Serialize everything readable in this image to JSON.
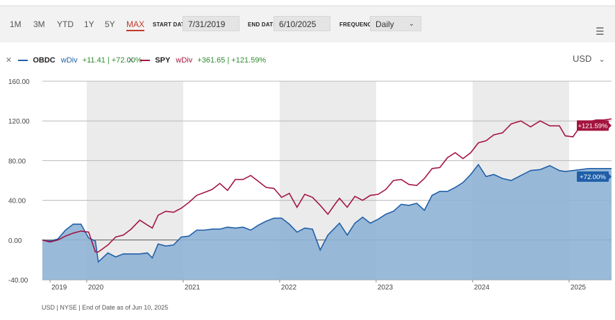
{
  "toolbar": {
    "ranges": [
      "1M",
      "3M",
      "YTD",
      "1Y",
      "5Y",
      "MAX"
    ],
    "active_range": "MAX",
    "start_label": "START DATE",
    "start_value": "7/31/2019",
    "end_label": "END DATE",
    "end_value": "6/10/2025",
    "freq_label": "FREQUENCY",
    "freq_value": "Daily",
    "menu_icon": "list-menu-icon"
  },
  "legend": [
    {
      "ticker": "OBDC",
      "wdiv": "wDiv",
      "change": "+11.41 | +72.00%",
      "color": "#1f5fa8"
    },
    {
      "ticker": "SPY",
      "wdiv": "wDiv",
      "change": "+361.65 | +121.59%",
      "color": "#a3143f"
    }
  ],
  "currency": "USD",
  "footer": "USD | NYSE | End of Date as of Jun 10, 2025",
  "chart_data": {
    "type": "line",
    "x_labels": [
      "2019",
      "2020",
      "2021",
      "2022",
      "2023",
      "2024",
      "2025"
    ],
    "y_ticks": [
      "160.00",
      "120.00",
      "80.00",
      "40.00",
      "0.00",
      "-40.00"
    ],
    "ylim": [
      -40,
      160
    ],
    "xlim": [
      2019.54,
      2025.44
    ],
    "unit": "%",
    "series": [
      {
        "name": "OBDC",
        "color": "#1f5fa8",
        "fill": "#8fb2d6",
        "end_label": "+72.00%",
        "x": [
          2019.54,
          2019.62,
          2019.7,
          2019.78,
          2019.86,
          2019.94,
          2020.02,
          2020.09,
          2020.12,
          2020.22,
          2020.3,
          2020.38,
          2020.46,
          2020.55,
          2020.63,
          2020.68,
          2020.74,
          2020.82,
          2020.9,
          2020.98,
          2021.06,
          2021.14,
          2021.22,
          2021.3,
          2021.38,
          2021.46,
          2021.54,
          2021.62,
          2021.7,
          2021.78,
          2021.86,
          2021.94,
          2022.02,
          2022.1,
          2022.18,
          2022.26,
          2022.34,
          2022.42,
          2022.5,
          2022.58,
          2022.62,
          2022.7,
          2022.78,
          2022.86,
          2022.94,
          2023.02,
          2023.1,
          2023.18,
          2023.26,
          2023.34,
          2023.42,
          2023.5,
          2023.58,
          2023.66,
          2023.74,
          2023.82,
          2023.9,
          2023.98,
          2024.06,
          2024.14,
          2024.22,
          2024.31,
          2024.4,
          2024.5,
          2024.6,
          2024.7,
          2024.8,
          2024.9,
          2024.96,
          2025.04,
          2025.12,
          2025.2,
          2025.28,
          2025.36,
          2025.44
        ],
        "y": [
          0,
          -1,
          1,
          10,
          16,
          16,
          2,
          -1,
          -22,
          -13,
          -17,
          -14,
          -14,
          -14,
          -13,
          -18,
          -4,
          -6,
          -5,
          3,
          4,
          10,
          10,
          11,
          11,
          13,
          12,
          13,
          10,
          15,
          19,
          22,
          22,
          16,
          8,
          12,
          11,
          -10,
          5,
          13,
          17,
          5,
          17,
          23,
          17,
          21,
          26,
          29,
          36,
          35,
          37,
          30,
          45,
          49,
          49,
          53,
          58,
          66,
          76,
          64,
          66,
          62,
          60,
          65,
          70,
          71,
          75,
          70,
          69,
          70,
          71,
          72,
          72,
          72,
          72
        ]
      },
      {
        "name": "SPY",
        "color": "#a3143f",
        "end_label": "+121.59%",
        "x": [
          2019.54,
          2019.62,
          2019.7,
          2019.78,
          2019.86,
          2019.94,
          2020.02,
          2020.09,
          2020.12,
          2020.22,
          2020.3,
          2020.38,
          2020.46,
          2020.55,
          2020.63,
          2020.68,
          2020.74,
          2020.82,
          2020.9,
          2020.98,
          2021.06,
          2021.14,
          2021.22,
          2021.3,
          2021.38,
          2021.46,
          2021.54,
          2021.62,
          2021.7,
          2021.78,
          2021.86,
          2021.94,
          2022.02,
          2022.1,
          2022.18,
          2022.26,
          2022.34,
          2022.42,
          2022.5,
          2022.58,
          2022.62,
          2022.7,
          2022.78,
          2022.86,
          2022.94,
          2023.02,
          2023.1,
          2023.18,
          2023.26,
          2023.34,
          2023.42,
          2023.5,
          2023.58,
          2023.66,
          2023.74,
          2023.82,
          2023.9,
          2023.98,
          2024.06,
          2024.14,
          2024.22,
          2024.31,
          2024.4,
          2024.5,
          2024.6,
          2024.7,
          2024.8,
          2024.9,
          2024.96,
          2025.04,
          2025.12,
          2025.2,
          2025.28,
          2025.36,
          2025.44
        ],
        "y": [
          0,
          -2,
          0,
          4,
          7,
          9,
          8,
          -12,
          -12,
          -5,
          3,
          5,
          11,
          20,
          15,
          12,
          25,
          29,
          28,
          32,
          38,
          45,
          48,
          51,
          57,
          50,
          61,
          61,
          65,
          59,
          53,
          52,
          43,
          47,
          33,
          46,
          43,
          35,
          26,
          37,
          42,
          33,
          44,
          40,
          45,
          46,
          51,
          60,
          61,
          56,
          55,
          62,
          72,
          73,
          83,
          88,
          82,
          88,
          98,
          100,
          106,
          108,
          117,
          120,
          114,
          120,
          115,
          115,
          105,
          104,
          115,
          119,
          121,
          121,
          122
        ]
      }
    ],
    "shaded_years": [
      "2020",
      "2022",
      "2024"
    ]
  }
}
